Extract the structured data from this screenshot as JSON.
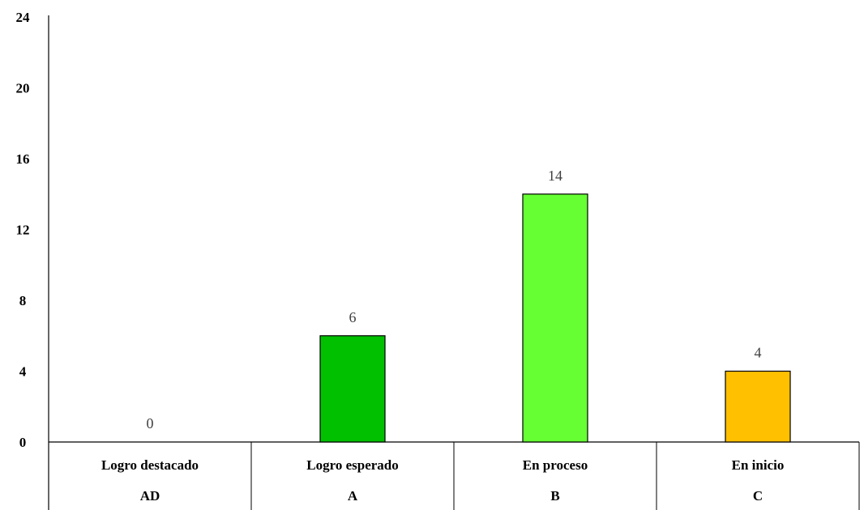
{
  "chart_data": {
    "type": "bar",
    "categories": [
      {
        "name": "Logro destacado",
        "code": "AD"
      },
      {
        "name": "Logro esperado",
        "code": "A"
      },
      {
        "name": "En proceso",
        "code": "B"
      },
      {
        "name": "En inicio",
        "code": "C"
      }
    ],
    "values": [
      0,
      6,
      14,
      4
    ],
    "data_labels": [
      "0",
      "6",
      "14",
      "4"
    ],
    "colors": [
      "#00B050",
      "#00C000",
      "#66FF33",
      "#FFC000"
    ],
    "yticks": [
      "0",
      "4",
      "8",
      "12",
      "16",
      "20",
      "24"
    ],
    "ylim": [
      0,
      24
    ],
    "grid": false,
    "legend": "none"
  }
}
